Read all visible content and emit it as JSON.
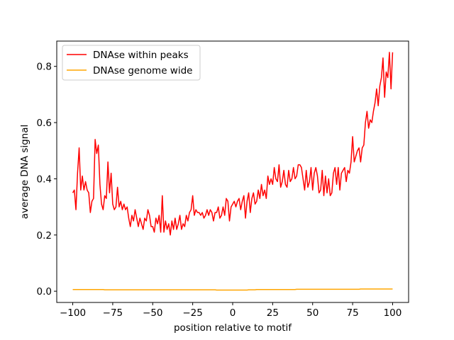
{
  "chart_data": {
    "type": "line",
    "xlabel": "position relative to motif",
    "ylabel": "average DNA signal",
    "xlim": [
      -110,
      110
    ],
    "ylim": [
      -0.04,
      0.89
    ],
    "xticks": [
      {
        "value": -100,
        "label": "−100"
      },
      {
        "value": -75,
        "label": "−75"
      },
      {
        "value": -50,
        "label": "−50"
      },
      {
        "value": -25,
        "label": "−25"
      },
      0,
      25,
      50,
      75,
      100
    ],
    "yticks": [
      {
        "value": 0,
        "label": "0.0"
      },
      0.2,
      0.4,
      0.6,
      0.8
    ],
    "legend": "upper left",
    "x": [
      -100,
      -99,
      -98,
      -97,
      -96,
      -95,
      -94,
      -93,
      -92,
      -91,
      -90,
      -89,
      -88,
      -87,
      -86,
      -85,
      -84,
      -83,
      -82,
      -81,
      -80,
      -79,
      -78,
      -77,
      -76,
      -75,
      -74,
      -73,
      -72,
      -71,
      -70,
      -69,
      -68,
      -67,
      -66,
      -65,
      -64,
      -63,
      -62,
      -61,
      -60,
      -59,
      -58,
      -57,
      -56,
      -55,
      -54,
      -53,
      -52,
      -51,
      -50,
      -49,
      -48,
      -47,
      -46,
      -45,
      -44,
      -43,
      -42,
      -41,
      -40,
      -39,
      -38,
      -37,
      -36,
      -35,
      -34,
      -33,
      -32,
      -31,
      -30,
      -29,
      -28,
      -27,
      -26,
      -25,
      -24,
      -23,
      -22,
      -21,
      -20,
      -19,
      -18,
      -17,
      -16,
      -15,
      -14,
      -13,
      -12,
      -11,
      -10,
      -9,
      -8,
      -7,
      -6,
      -5,
      -4,
      -3,
      -2,
      -1,
      0,
      1,
      2,
      3,
      4,
      5,
      6,
      7,
      8,
      9,
      10,
      11,
      12,
      13,
      14,
      15,
      16,
      17,
      18,
      19,
      20,
      21,
      22,
      23,
      24,
      25,
      26,
      27,
      28,
      29,
      30,
      31,
      32,
      33,
      34,
      35,
      36,
      37,
      38,
      39,
      40,
      41,
      42,
      43,
      44,
      45,
      46,
      47,
      48,
      49,
      50,
      51,
      52,
      53,
      54,
      55,
      56,
      57,
      58,
      59,
      60,
      61,
      62,
      63,
      64,
      65,
      66,
      67,
      68,
      69,
      70,
      71,
      72,
      73,
      74,
      75,
      76,
      77,
      78,
      79,
      80,
      81,
      82,
      83,
      84,
      85,
      86,
      87,
      88,
      89,
      90,
      91,
      92,
      93,
      94,
      95,
      96,
      97,
      98,
      99,
      100
    ],
    "series": [
      {
        "name": "DNAse within peaks",
        "color": "#ff0000",
        "values": [
          0.35,
          0.36,
          0.29,
          0.42,
          0.51,
          0.36,
          0.41,
          0.36,
          0.39,
          0.36,
          0.35,
          0.28,
          0.32,
          0.33,
          0.54,
          0.49,
          0.52,
          0.38,
          0.31,
          0.29,
          0.34,
          0.33,
          0.46,
          0.35,
          0.42,
          0.31,
          0.29,
          0.3,
          0.37,
          0.3,
          0.32,
          0.29,
          0.31,
          0.29,
          0.3,
          0.26,
          0.23,
          0.27,
          0.25,
          0.29,
          0.26,
          0.23,
          0.26,
          0.24,
          0.22,
          0.26,
          0.25,
          0.29,
          0.27,
          0.23,
          0.23,
          0.21,
          0.26,
          0.24,
          0.27,
          0.21,
          0.34,
          0.21,
          0.25,
          0.22,
          0.24,
          0.2,
          0.25,
          0.22,
          0.26,
          0.22,
          0.24,
          0.27,
          0.22,
          0.24,
          0.23,
          0.27,
          0.25,
          0.28,
          0.29,
          0.34,
          0.27,
          0.29,
          0.28,
          0.28,
          0.27,
          0.28,
          0.26,
          0.27,
          0.29,
          0.27,
          0.29,
          0.28,
          0.25,
          0.28,
          0.28,
          0.3,
          0.26,
          0.27,
          0.3,
          0.27,
          0.33,
          0.32,
          0.25,
          0.3,
          0.31,
          0.32,
          0.3,
          0.32,
          0.33,
          0.29,
          0.32,
          0.34,
          0.26,
          0.32,
          0.35,
          0.28,
          0.33,
          0.35,
          0.31,
          0.32,
          0.36,
          0.33,
          0.38,
          0.34,
          0.36,
          0.33,
          0.41,
          0.38,
          0.4,
          0.38,
          0.44,
          0.4,
          0.39,
          0.45,
          0.37,
          0.39,
          0.43,
          0.38,
          0.37,
          0.43,
          0.39,
          0.4,
          0.44,
          0.4,
          0.41,
          0.45,
          0.45,
          0.44,
          0.4,
          0.36,
          0.43,
          0.37,
          0.39,
          0.44,
          0.36,
          0.42,
          0.44,
          0.41,
          0.35,
          0.36,
          0.43,
          0.34,
          0.41,
          0.35,
          0.4,
          0.34,
          0.35,
          0.42,
          0.44,
          0.38,
          0.44,
          0.36,
          0.42,
          0.43,
          0.44,
          0.39,
          0.43,
          0.42,
          0.46,
          0.55,
          0.46,
          0.48,
          0.5,
          0.51,
          0.46,
          0.51,
          0.52,
          0.6,
          0.64,
          0.58,
          0.61,
          0.6,
          0.64,
          0.67,
          0.72,
          0.66,
          0.73,
          0.76,
          0.83,
          0.69,
          0.78,
          0.76,
          0.85,
          0.72,
          0.85
        ]
      },
      {
        "name": "DNAse genome wide",
        "color": "#ffa500",
        "values": [
          0.006,
          0.006,
          0.006,
          0.006,
          0.006,
          0.006,
          0.006,
          0.006,
          0.006,
          0.006,
          0.006,
          0.006,
          0.006,
          0.006,
          0.006,
          0.006,
          0.006,
          0.006,
          0.006,
          0.006,
          0.005,
          0.005,
          0.005,
          0.005,
          0.005,
          0.005,
          0.005,
          0.005,
          0.005,
          0.005,
          0.005,
          0.005,
          0.005,
          0.005,
          0.005,
          0.005,
          0.005,
          0.005,
          0.005,
          0.005,
          0.005,
          0.005,
          0.005,
          0.005,
          0.005,
          0.005,
          0.005,
          0.005,
          0.005,
          0.005,
          0.005,
          0.005,
          0.005,
          0.005,
          0.005,
          0.005,
          0.005,
          0.005,
          0.005,
          0.005,
          0.005,
          0.005,
          0.005,
          0.005,
          0.005,
          0.005,
          0.005,
          0.005,
          0.005,
          0.005,
          0.005,
          0.005,
          0.005,
          0.005,
          0.005,
          0.005,
          0.005,
          0.005,
          0.005,
          0.005,
          0.005,
          0.005,
          0.005,
          0.005,
          0.005,
          0.005,
          0.005,
          0.005,
          0.005,
          0.005,
          0.004,
          0.004,
          0.004,
          0.004,
          0.004,
          0.004,
          0.004,
          0.004,
          0.004,
          0.004,
          0.004,
          0.004,
          0.004,
          0.004,
          0.004,
          0.004,
          0.004,
          0.004,
          0.004,
          0.004,
          0.005,
          0.005,
          0.005,
          0.005,
          0.005,
          0.006,
          0.006,
          0.006,
          0.006,
          0.006,
          0.006,
          0.006,
          0.006,
          0.006,
          0.006,
          0.006,
          0.006,
          0.006,
          0.006,
          0.006,
          0.006,
          0.006,
          0.006,
          0.006,
          0.006,
          0.006,
          0.006,
          0.006,
          0.006,
          0.006,
          0.007,
          0.007,
          0.007,
          0.007,
          0.007,
          0.007,
          0.007,
          0.007,
          0.007,
          0.007,
          0.007,
          0.007,
          0.007,
          0.007,
          0.007,
          0.007,
          0.007,
          0.007,
          0.007,
          0.007,
          0.007,
          0.007,
          0.007,
          0.007,
          0.007,
          0.007,
          0.007,
          0.007,
          0.007,
          0.007,
          0.007,
          0.007,
          0.007,
          0.007,
          0.007,
          0.007,
          0.007,
          0.007,
          0.007,
          0.007,
          0.008,
          0.008,
          0.008,
          0.008,
          0.008,
          0.008,
          0.008,
          0.008,
          0.008,
          0.008,
          0.008,
          0.008,
          0.008,
          0.008,
          0.008,
          0.008,
          0.008,
          0.008,
          0.008,
          0.008,
          0.008
        ]
      }
    ]
  }
}
